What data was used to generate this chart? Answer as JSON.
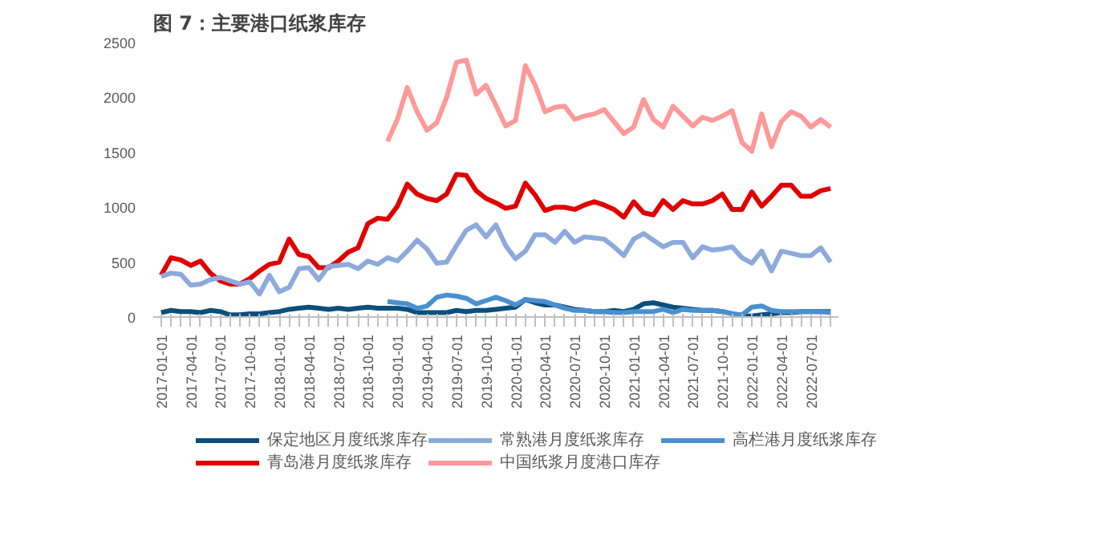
{
  "chart_data": {
    "type": "line",
    "title": "图 7：主要港口纸浆库存",
    "categories": [
      "2017-01-01",
      null,
      null,
      "2017-04-01",
      null,
      null,
      "2017-07-01",
      null,
      null,
      "2017-10-01",
      null,
      null,
      "2018-01-01",
      null,
      null,
      "2018-04-01",
      null,
      null,
      "2018-07-01",
      null,
      null,
      "2018-10-01",
      null,
      null,
      "2019-01-01",
      null,
      null,
      "2019-04-01",
      null,
      null,
      "2019-07-01",
      null,
      null,
      "2019-10-01",
      null,
      null,
      "2020-01-01",
      null,
      null,
      "2020-04-01",
      null,
      null,
      "2020-07-01",
      null,
      null,
      "2020-10-01",
      null,
      null,
      "2021-01-01",
      null,
      null,
      "2021-04-01",
      null,
      null,
      "2021-07-01",
      null,
      null,
      "2021-10-01",
      null,
      null,
      "2022-01-01",
      null,
      null,
      "2022-04-01",
      null,
      null,
      "2022-07-01",
      null,
      null
    ],
    "ylim": [
      0,
      2500
    ],
    "yticks": [
      0,
      500,
      1000,
      1500,
      2000,
      2500
    ],
    "legend": "bottom",
    "series": [
      {
        "name": "保定地区月度纸浆库存",
        "color": "#0b4f7c",
        "values": [
          40,
          60,
          50,
          50,
          40,
          60,
          50,
          20,
          20,
          30,
          30,
          40,
          50,
          70,
          80,
          90,
          80,
          70,
          80,
          70,
          80,
          90,
          80,
          80,
          80,
          70,
          40,
          40,
          40,
          40,
          60,
          50,
          60,
          60,
          70,
          80,
          90,
          160,
          130,
          110,
          110,
          90,
          70,
          60,
          50,
          50,
          60,
          50,
          70,
          120,
          130,
          110,
          90,
          80,
          70,
          60,
          60,
          50,
          30,
          10,
          10,
          20,
          30,
          40,
          40,
          50,
          50,
          50,
          50
        ]
      },
      {
        "name": "青岛港月度纸浆库存",
        "color": "#e00000",
        "values": [
          380,
          540,
          520,
          470,
          510,
          400,
          330,
          300,
          300,
          350,
          420,
          480,
          500,
          710,
          570,
          550,
          450,
          450,
          510,
          590,
          630,
          850,
          900,
          890,
          1010,
          1210,
          1120,
          1080,
          1060,
          1120,
          1300,
          1290,
          1150,
          1080,
          1040,
          990,
          1010,
          1220,
          1110,
          970,
          1000,
          1000,
          980,
          1020,
          1050,
          1020,
          980,
          910,
          1050,
          950,
          930,
          1060,
          980,
          1060,
          1030,
          1030,
          1060,
          1120,
          980,
          980,
          1140,
          1010,
          1100,
          1200,
          1200,
          1100,
          1100,
          1150,
          1170
        ]
      },
      {
        "name": "常熟港月度纸浆库存",
        "color": "#8eaadc",
        "values": [
          370,
          400,
          390,
          290,
          300,
          340,
          360,
          330,
          300,
          320,
          210,
          380,
          230,
          270,
          440,
          450,
          340,
          460,
          470,
          480,
          440,
          510,
          480,
          540,
          510,
          600,
          700,
          620,
          490,
          500,
          650,
          790,
          840,
          730,
          840,
          650,
          530,
          600,
          750,
          750,
          680,
          780,
          680,
          730,
          720,
          710,
          640,
          560,
          710,
          760,
          700,
          640,
          680,
          680,
          540,
          640,
          610,
          620,
          640,
          540,
          490,
          600,
          420,
          600,
          580,
          560,
          560,
          630,
          500
        ]
      },
      {
        "name": "中国纸浆月度港口库存",
        "color": "#ff9999",
        "values": [
          null,
          null,
          null,
          null,
          null,
          null,
          null,
          null,
          null,
          null,
          null,
          null,
          null,
          null,
          null,
          null,
          null,
          null,
          null,
          null,
          null,
          null,
          null,
          1600,
          1800,
          2090,
          1870,
          1700,
          1770,
          2000,
          2320,
          2340,
          2030,
          2110,
          1930,
          1740,
          1790,
          2290,
          2110,
          1870,
          1910,
          1920,
          1800,
          1830,
          1850,
          1890,
          1780,
          1670,
          1730,
          1980,
          1800,
          1730,
          1920,
          1830,
          1740,
          1820,
          1790,
          1830,
          1880,
          1590,
          1510,
          1850,
          1550,
          1780,
          1870,
          1830,
          1730,
          1800,
          1730
        ]
      },
      {
        "name": "高栏港月度纸浆库存",
        "color": "#4a90d0",
        "values": [
          null,
          null,
          null,
          null,
          null,
          null,
          null,
          null,
          null,
          null,
          null,
          null,
          null,
          null,
          null,
          null,
          null,
          null,
          null,
          null,
          null,
          null,
          null,
          140,
          130,
          120,
          80,
          100,
          180,
          200,
          190,
          170,
          120,
          150,
          180,
          150,
          110,
          160,
          150,
          140,
          110,
          80,
          60,
          60,
          50,
          50,
          40,
          40,
          50,
          50,
          50,
          70,
          40,
          70,
          60,
          60,
          60,
          50,
          30,
          20,
          90,
          100,
          60,
          50,
          50,
          50,
          50,
          50,
          40
        ]
      }
    ]
  }
}
